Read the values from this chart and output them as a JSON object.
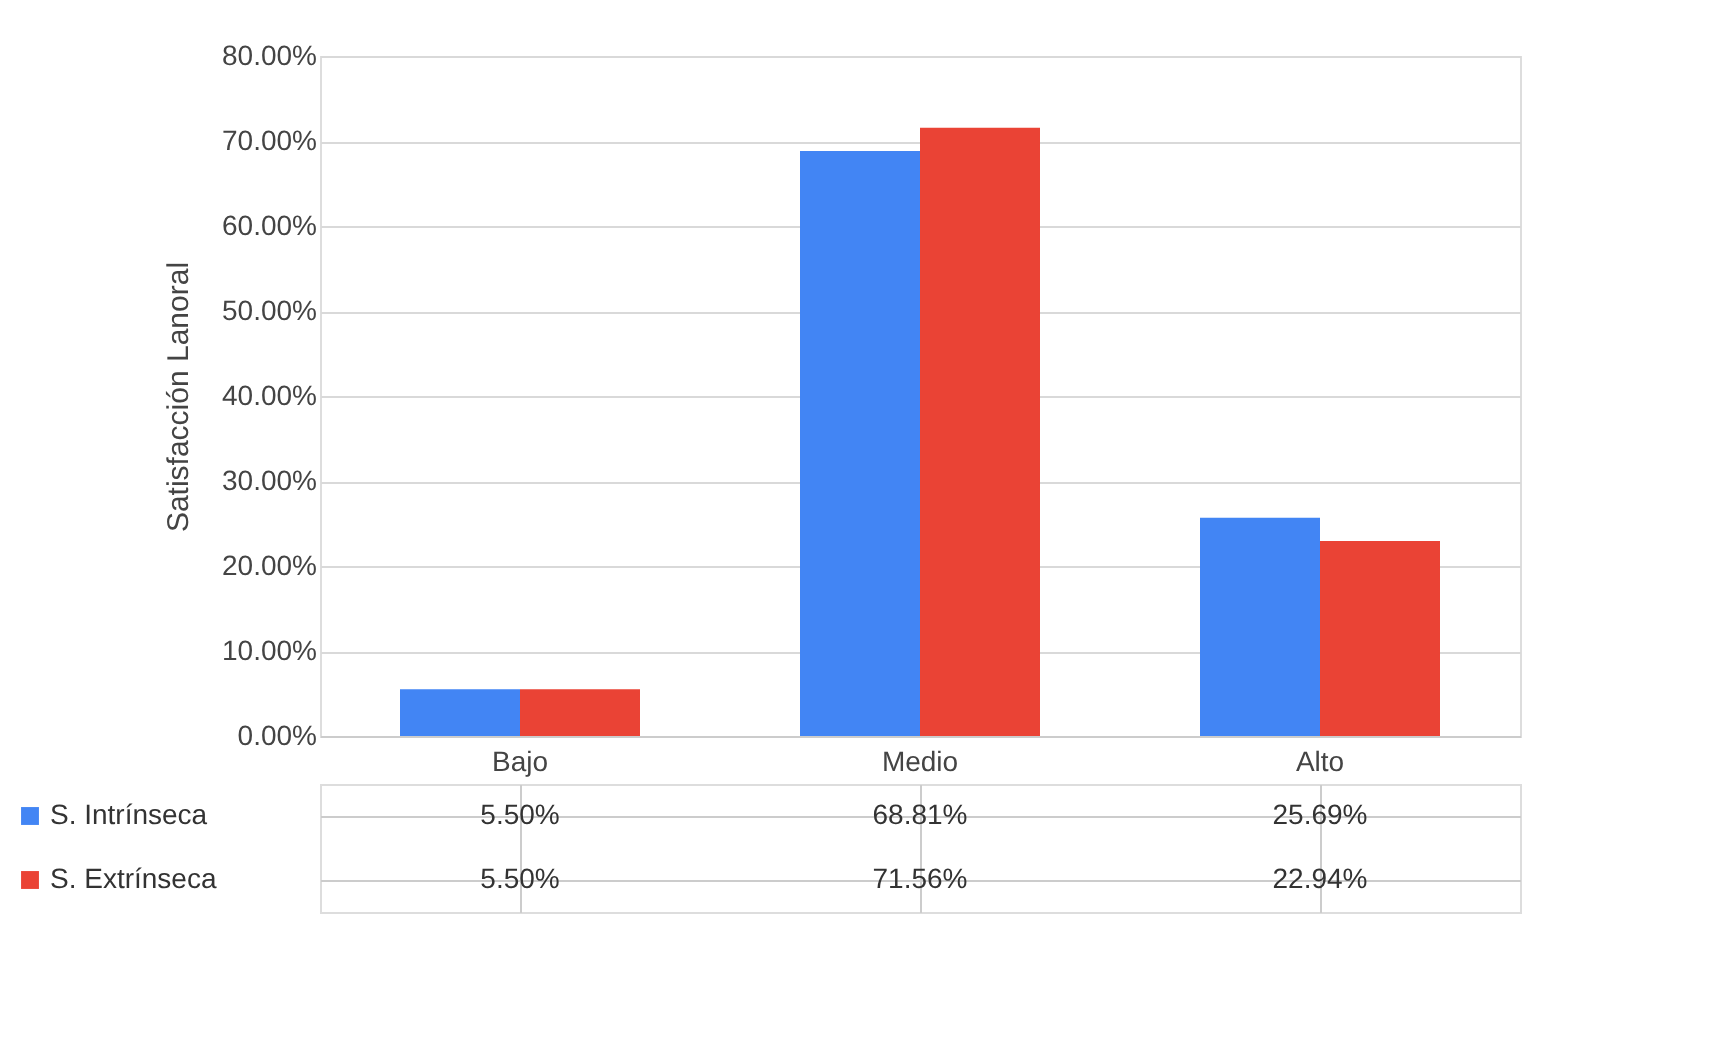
{
  "chart_data": {
    "type": "bar",
    "ylabel": "Satisfacción Lanoral",
    "categories": [
      "Bajo",
      "Medio",
      "Alto"
    ],
    "series": [
      {
        "name": "S. Intrínseca",
        "color": "#4285f4",
        "values": [
          5.5,
          68.81,
          25.69
        ],
        "value_labels": [
          "5.50%",
          "68.81%",
          "25.69%"
        ]
      },
      {
        "name": "S. Extrínseca",
        "color": "#ea4335",
        "values": [
          5.5,
          71.56,
          22.94
        ],
        "value_labels": [
          "5.50%",
          "71.56%",
          "22.94%"
        ]
      }
    ],
    "ylim": [
      0,
      80
    ],
    "yticks": [
      {
        "value": 0,
        "label": "0.00%"
      },
      {
        "value": 10,
        "label": "10.00%"
      },
      {
        "value": 20,
        "label": "20.00%"
      },
      {
        "value": 30,
        "label": "30.00%"
      },
      {
        "value": 40,
        "label": "40.00%"
      },
      {
        "value": 50,
        "label": "50.00%"
      },
      {
        "value": 60,
        "label": "60.00%"
      },
      {
        "value": 70,
        "label": "70.00%"
      },
      {
        "value": 80,
        "label": "80.00%"
      }
    ],
    "grid": "y",
    "legend": "bottom"
  }
}
